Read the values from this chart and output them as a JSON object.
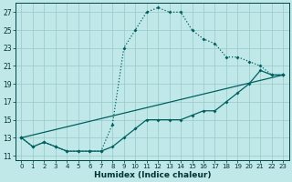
{
  "xlabel": "Humidex (Indice chaleur)",
  "bg_color": "#c0e8e8",
  "grid_color": "#98c8c8",
  "line_color": "#006060",
  "xlim": [
    -0.5,
    23.5
  ],
  "ylim": [
    10.5,
    28.0
  ],
  "xticks": [
    0,
    1,
    2,
    3,
    4,
    5,
    6,
    7,
    8,
    9,
    10,
    11,
    12,
    13,
    14,
    15,
    16,
    17,
    18,
    19,
    20,
    21,
    22,
    23
  ],
  "yticks": [
    11,
    13,
    15,
    17,
    19,
    21,
    23,
    25,
    27
  ],
  "curve_x": [
    0,
    1,
    2,
    3,
    4,
    5,
    6,
    7,
    8,
    9,
    10,
    11,
    12,
    13,
    14,
    15,
    16,
    17,
    18,
    19,
    20,
    21,
    22,
    23
  ],
  "curve_y": [
    13,
    12,
    12.5,
    12,
    11.5,
    11.5,
    11.5,
    11.5,
    14.5,
    23,
    25,
    27,
    27.5,
    27,
    27,
    25,
    24,
    23.5,
    22,
    22,
    21.5,
    21,
    20,
    20
  ],
  "line2_x": [
    0,
    1,
    2,
    3,
    4,
    5,
    6,
    7,
    8,
    9,
    10,
    11,
    12,
    13,
    14,
    15,
    16,
    17,
    18,
    19,
    20,
    21,
    22,
    23
  ],
  "line2_y": [
    13,
    12,
    12.5,
    12,
    11.5,
    11.5,
    11.5,
    11.5,
    12,
    13,
    14,
    15,
    15,
    15,
    15,
    15.5,
    16,
    16,
    17,
    18,
    19,
    20.5,
    20,
    20
  ],
  "line3_x": [
    0,
    23
  ],
  "line3_y": [
    13,
    20
  ]
}
